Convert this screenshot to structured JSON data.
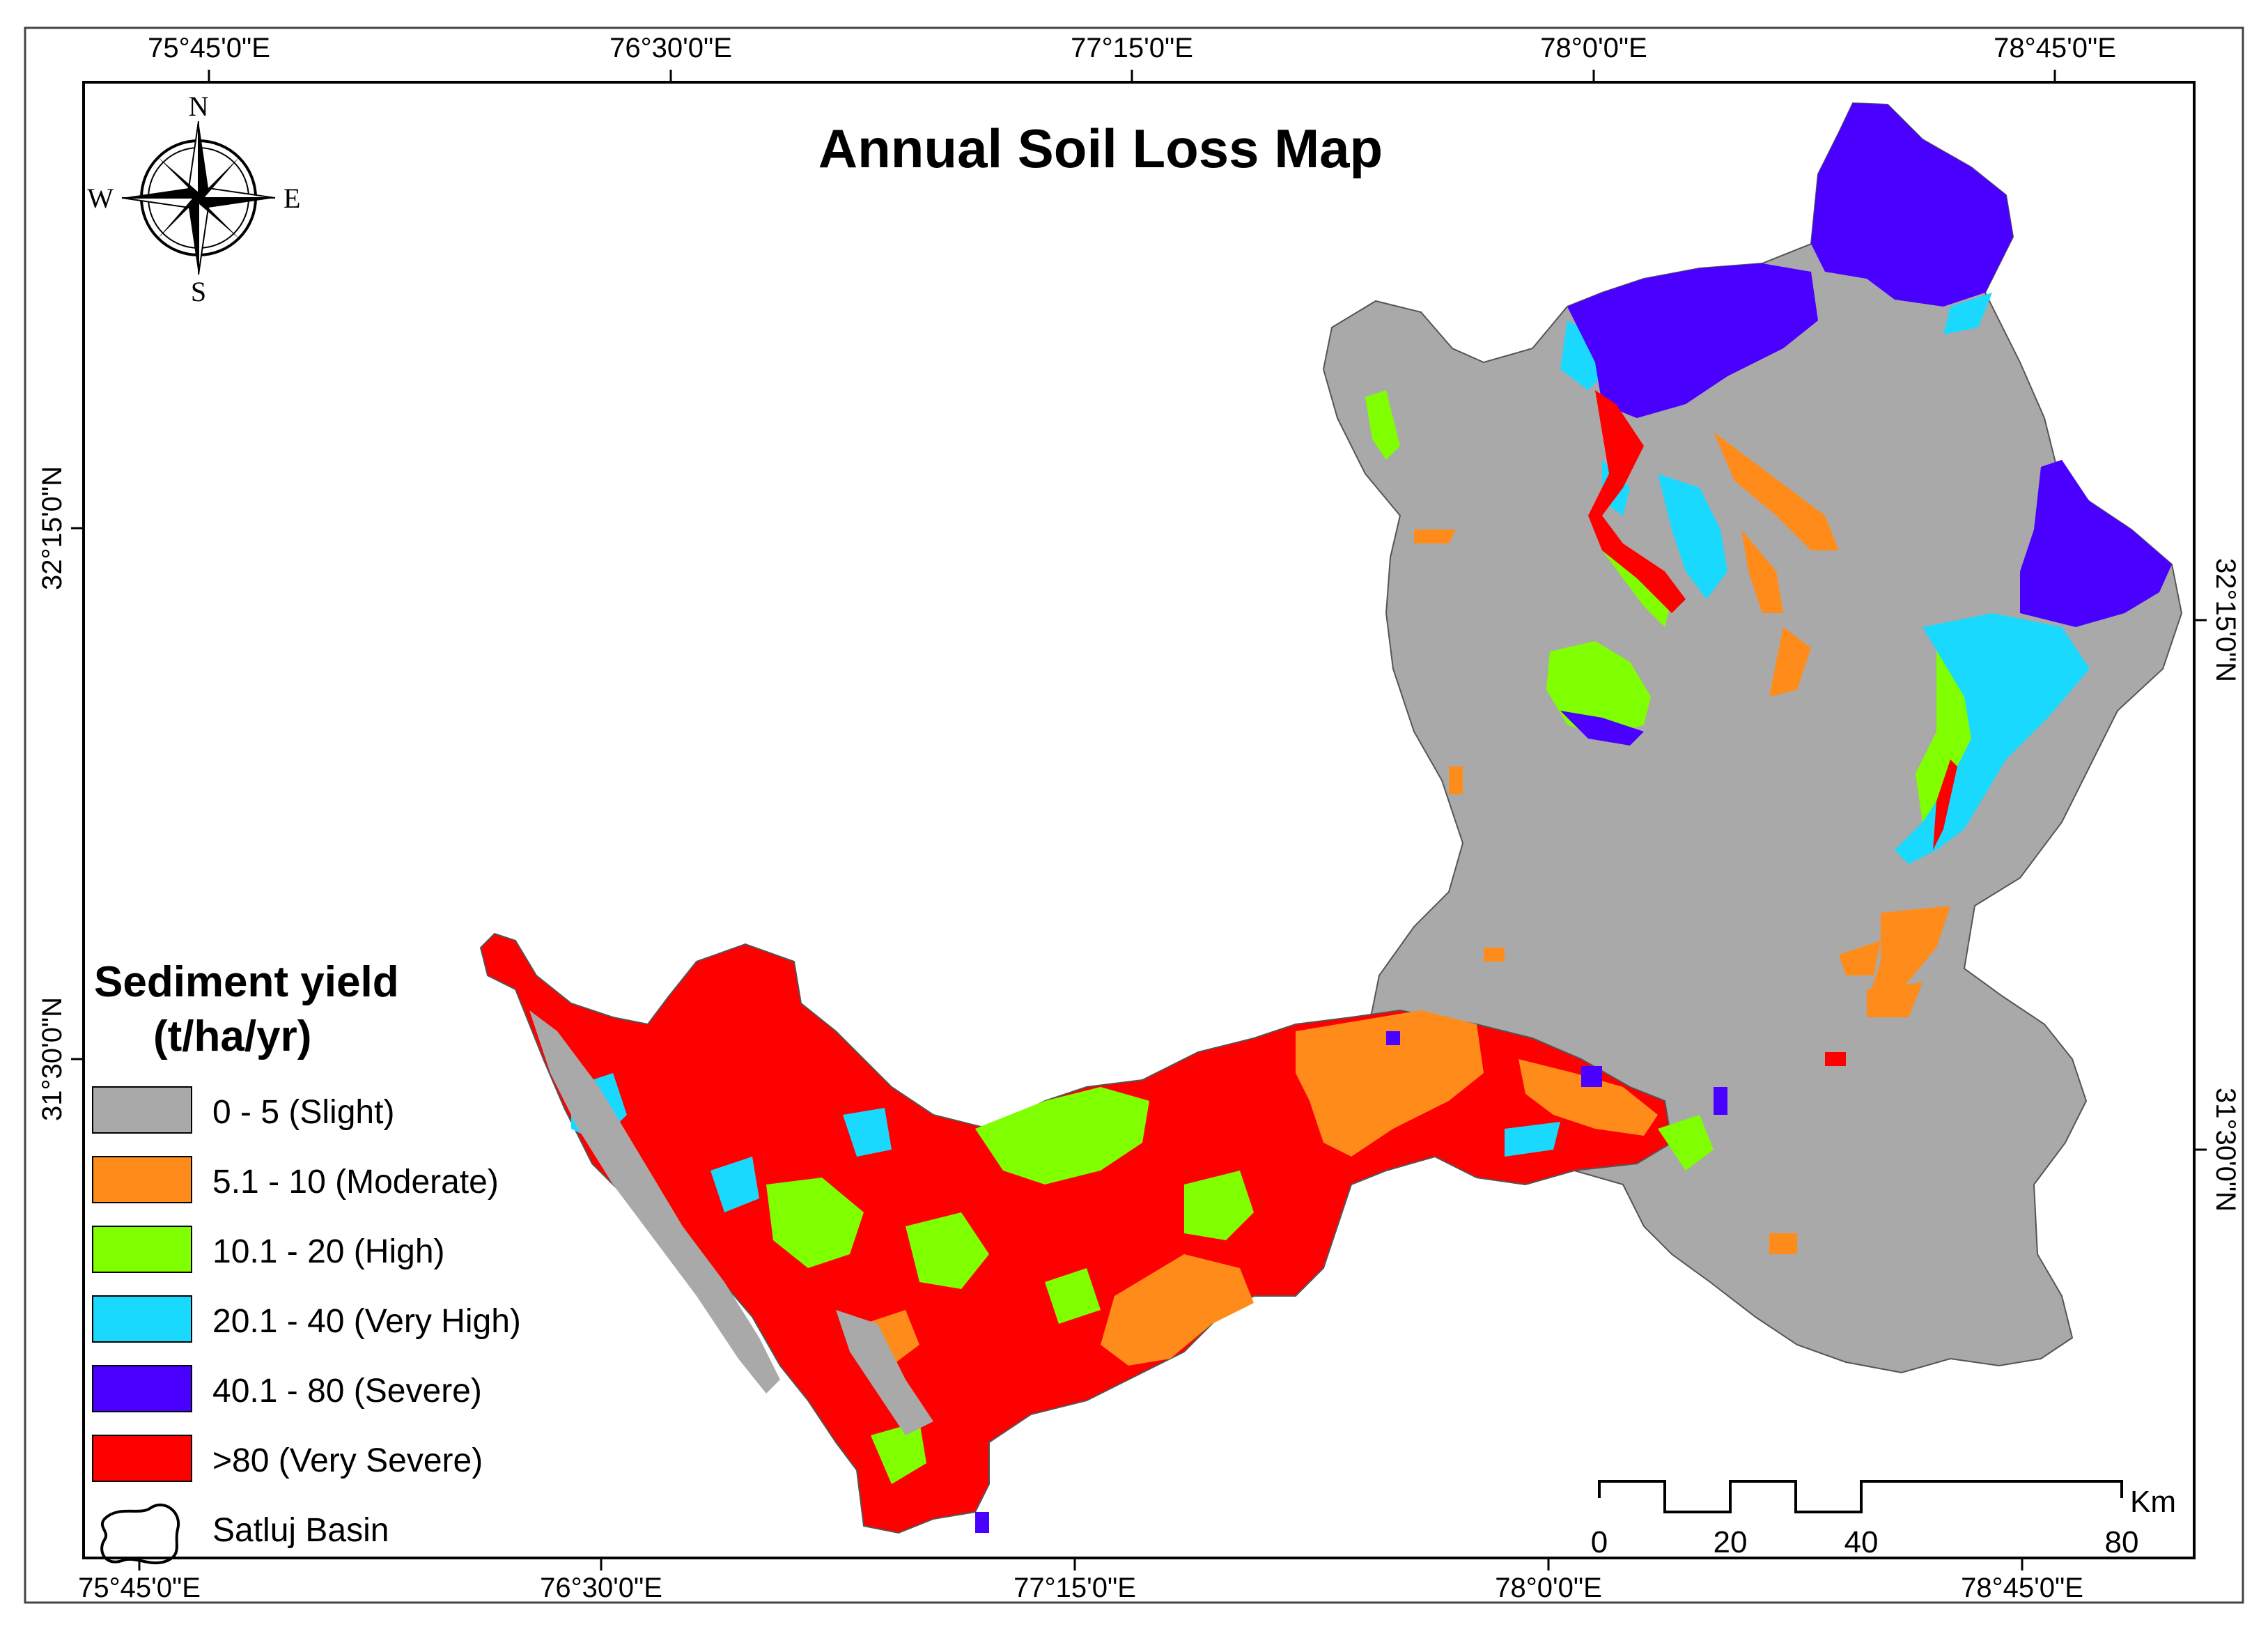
{
  "map": {
    "title": "Annual Soil Loss Map",
    "top_ticks": [
      "75°45'0\"E",
      "76°30'0\"E",
      "77°15'0\"E",
      "78°0'0\"E",
      "78°45'0\"E"
    ],
    "bottom_ticks": [
      "75°45'0\"E",
      "76°30'0\"E",
      "77°15'0\"E",
      "78°0'0\"E",
      "78°45'0\"E"
    ],
    "left_ticks": [
      "32°15'0\"N",
      "31°30'0\"N"
    ],
    "right_ticks": [
      "32°15'0\"N",
      "31°30'0\"N"
    ],
    "compass": {
      "n": "N",
      "s": "S",
      "e": "E",
      "w": "W"
    },
    "legend": {
      "title_line1": "Sediment yield",
      "title_line2": "(t/ha/yr)",
      "items": [
        {
          "label": "0 - 5 (Slight)",
          "color": "#a9a9a9"
        },
        {
          "label": "5.1 - 10 (Moderate)",
          "color": "#ff8c1a"
        },
        {
          "label": "10.1 - 20 (High)",
          "color": "#80ff00"
        },
        {
          "label": "20.1 - 40 (Very High)",
          "color": "#1ad9ff"
        },
        {
          "label": "40.1 - 80 (Severe)",
          "color": "#4a00ff"
        },
        {
          "label": ">80 (Very Severe)",
          "color": "#ff0000"
        }
      ],
      "basin_label": "Satluj Basin"
    },
    "scale_bar": {
      "unit": "Km",
      "labels": [
        "0",
        "20",
        "40",
        "80"
      ]
    }
  }
}
